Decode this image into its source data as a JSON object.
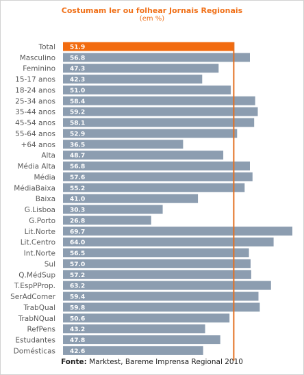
{
  "colors": {
    "bar": "#8c9db0",
    "highlight": "#f26b0f",
    "reference_line": "#e37022",
    "label_text": "#5a5a5a",
    "value_text": "#ffffff"
  },
  "chart_data": {
    "type": "bar",
    "orientation": "horizontal",
    "title": "Costumam ler ou folhear Jornais Regionais",
    "subtitle": "(em %)",
    "categories": [
      "Total",
      "Masculino",
      "Feminino",
      "15-17 anos",
      "18-24 anos",
      "25-34 anos",
      "35-44 anos",
      "45-54 anos",
      "55-64 anos",
      "+64 anos",
      "Alta",
      "Média Alta",
      "Média",
      "MédiaBaixa",
      "Baixa",
      "G.Lisboa",
      "G.Porto",
      "Lit.Norte",
      "Lit.Centro",
      "Int.Norte",
      "Sul",
      "Q.MédSup",
      "T.EspPProp.",
      "SerAdComer",
      "TrabQual",
      "TrabNQual",
      "RefPens",
      "Estudantes",
      "Domésticas"
    ],
    "values": [
      51.9,
      56.8,
      47.3,
      42.3,
      51.0,
      58.4,
      59.2,
      58.1,
      52.9,
      36.5,
      48.7,
      56.8,
      57.6,
      55.2,
      41.0,
      30.3,
      26.8,
      69.7,
      64.0,
      56.5,
      57.0,
      57.2,
      63.2,
      59.4,
      59.8,
      50.6,
      43.2,
      47.8,
      42.6
    ],
    "value_labels": [
      "51.9",
      "56.8",
      "47.3",
      "42.3",
      "51.0",
      "58.4",
      "59.2",
      "58.1",
      "52.9",
      "36.5",
      "48.7",
      "56.8",
      "57.6",
      "55.2",
      "41.0",
      "30.3",
      "26.8",
      "69.7",
      "64.0",
      "56.5",
      "57.0",
      "57.2",
      "63.2",
      "59.4",
      "59.8",
      "50.6",
      "43.2",
      "47.8",
      "42.6"
    ],
    "highlight_category": "Total",
    "reference_value": 51.9,
    "xlim": [
      0,
      69.7
    ],
    "grid": false,
    "legend": "none"
  },
  "source": {
    "label": "Fonte:",
    "text": "Marktest, Bareme Imprensa Regional 2010"
  }
}
